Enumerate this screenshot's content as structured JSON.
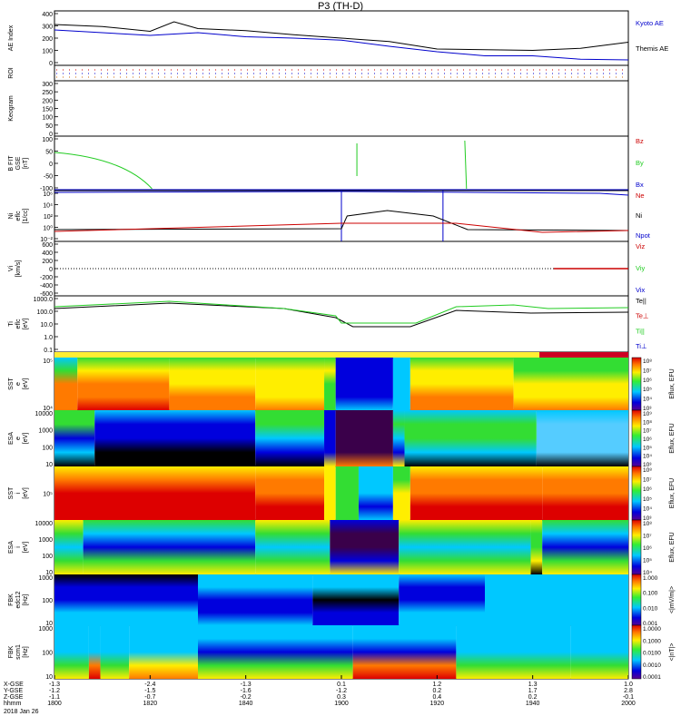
{
  "title": "P3 (TH-D)",
  "time_axis": {
    "start_label": "2018 Jan 26",
    "row_labels": [
      "X-GSE",
      "Y-GSE",
      "Z-GSE",
      "hhmm"
    ],
    "ticks": [
      {
        "x": "-1.3",
        "y": "-1.2",
        "z": "-1.1",
        "t": "1800"
      },
      {
        "x": "-2.4",
        "y": "-1.5",
        "z": "-0.7",
        "t": "1820"
      },
      {
        "x": "-1.3",
        "y": "-1.6",
        "z": "-0.2",
        "t": "1840"
      },
      {
        "x": "0.1",
        "y": "-1.2",
        "z": "0.3",
        "t": "1900"
      },
      {
        "x": "1.2",
        "y": "0.2",
        "z": "0.4",
        "t": "1920"
      },
      {
        "x": "1.3",
        "y": "1.7",
        "z": "0.2",
        "t": "1940"
      },
      {
        "x": "1.0",
        "y": "2.8",
        "z": "-0.1",
        "t": "2000"
      }
    ]
  },
  "panels": [
    {
      "key": "ae",
      "ylabel": [
        "AE Index"
      ],
      "yticks": [
        "400",
        "300",
        "200",
        "100",
        "0"
      ],
      "legend": [
        {
          "text": "Kyoto AE",
          "color": "#0000cc"
        },
        {
          "text": "Themis AE",
          "color": "#000000"
        }
      ]
    },
    {
      "key": "roi",
      "ylabel": [
        "ROI"
      ],
      "yticks": [],
      "legend": []
    },
    {
      "key": "keogram",
      "ylabel": [
        "Keogram"
      ],
      "yticks": [
        "300",
        "250",
        "200",
        "150",
        "100",
        "50",
        "0"
      ],
      "legend": []
    },
    {
      "key": "bfit",
      "ylabel": [
        "B FIT",
        "GSE",
        "[nT]"
      ],
      "yticks": [
        "100",
        "50",
        "0",
        "-50",
        "-100"
      ],
      "legend": [
        {
          "text": "Bz",
          "color": "#cc0000"
        },
        {
          "text": "By",
          "color": "#22cc22"
        },
        {
          "text": "Bx",
          "color": "#0000cc"
        }
      ]
    },
    {
      "key": "ni",
      "ylabel": [
        "Ni",
        "eflc",
        "[1/cc]"
      ],
      "yticks": [
        "10⁶",
        "10⁴",
        "10²",
        "10⁰",
        "10⁻²"
      ],
      "legend": [
        {
          "text": "Ne",
          "color": "#cc0000"
        },
        {
          "text": "Ni",
          "color": "#000000"
        },
        {
          "text": "Npot",
          "color": "#0000cc"
        }
      ]
    },
    {
      "key": "vi",
      "ylabel": [
        "Vi",
        "[km/s]"
      ],
      "yticks": [
        "600",
        "400",
        "200",
        "0",
        "-200",
        "-400",
        "-600"
      ],
      "legend": [
        {
          "text": "Viz",
          "color": "#cc0000"
        },
        {
          "text": "Viy",
          "color": "#22cc22"
        },
        {
          "text": "Vix",
          "color": "#0000cc"
        }
      ]
    },
    {
      "key": "ti",
      "ylabel": [
        "Ti",
        "eflc",
        "[eV]"
      ],
      "yticks": [
        "1000.0",
        "100.0",
        "10.0",
        "1.0",
        "0.1"
      ],
      "legend": [
        {
          "text": "Te||",
          "color": "#000000"
        },
        {
          "text": "Te⊥",
          "color": "#cc0000"
        },
        {
          "text": "Ti||",
          "color": "#22cc22"
        },
        {
          "text": "Ti⊥",
          "color": "#0000cc"
        }
      ]
    },
    {
      "key": "mode",
      "ylabel": [],
      "yticks": [],
      "legend": []
    },
    {
      "key": "sst_e",
      "ylabel": [
        "SST",
        "e",
        "[eV]"
      ],
      "yticks": [
        "10⁵",
        "10⁴"
      ],
      "legend": []
    },
    {
      "key": "esa_e",
      "ylabel": [
        "ESA",
        "e",
        "[eV]"
      ],
      "yticks": [
        "10000",
        "1000",
        "100",
        "10"
      ],
      "legend": []
    },
    {
      "key": "sst_i",
      "ylabel": [
        "SST",
        "i",
        "[eV]"
      ],
      "yticks": [
        "10⁵"
      ],
      "legend": []
    },
    {
      "key": "esa_i",
      "ylabel": [
        "ESA",
        "i",
        "[eV]"
      ],
      "yticks": [
        "10000",
        "1000",
        "100",
        "10"
      ],
      "legend": []
    },
    {
      "key": "fbk_e",
      "ylabel": [
        "FBK",
        "edc12",
        "[Hz]"
      ],
      "yticks": [
        "1000",
        "100",
        "10"
      ],
      "legend": []
    },
    {
      "key": "fbk_b",
      "ylabel": [
        "FBK",
        "scm1",
        "[Hz]"
      ],
      "yticks": [
        "1000",
        "100",
        "10"
      ],
      "legend": []
    }
  ],
  "colorbars": [
    {
      "panel": "sst_e",
      "label": "Eflux, EFU",
      "ticks": [
        "10⁸",
        "10⁷",
        "10⁶",
        "10⁵",
        "10⁴",
        "10³"
      ]
    },
    {
      "panel": "esa_e",
      "label": "Eflux, EFU",
      "ticks": [
        "10⁹",
        "10⁸",
        "10⁷",
        "10⁶",
        "10⁵",
        "10⁴",
        "10³"
      ]
    },
    {
      "panel": "sst_i",
      "label": "Eflux, EFU",
      "ticks": [
        "10⁸",
        "10⁷",
        "10⁶",
        "10⁵",
        "10⁴",
        "10³"
      ]
    },
    {
      "panel": "esa_i",
      "label": "Eflux, EFU",
      "ticks": [
        "10⁸",
        "10⁷",
        "10⁶",
        "10⁵",
        "10⁴"
      ]
    },
    {
      "panel": "fbk_e",
      "label": "<|mV/m|>",
      "ticks": [
        "1.000",
        "0.100",
        "0.010",
        "0.001"
      ]
    },
    {
      "panel": "fbk_b",
      "label": "<|nT|>",
      "ticks": [
        "1.0000",
        "0.1000",
        "0.0100",
        "0.0010",
        "0.0001"
      ]
    }
  ],
  "chart_data": {
    "type": "line",
    "title": "P3 (TH-D)",
    "x_ticks": [
      "1800",
      "1820",
      "1840",
      "1900",
      "1920",
      "1940",
      "2000"
    ],
    "x_range": [
      "1800",
      "2000"
    ],
    "series": [
      {
        "name": "Themis AE",
        "color": "#000000",
        "x": [
          "1800",
          "1810",
          "1820",
          "1825",
          "1830",
          "1840",
          "1850",
          "1900",
          "1910",
          "1920",
          "1930",
          "1940",
          "1950",
          "2000"
        ],
        "values": [
          300,
          285,
          250,
          320,
          270,
          255,
          225,
          200,
          175,
          120,
          115,
          110,
          125,
          170
        ]
      },
      {
        "name": "Kyoto AE",
        "color": "#0000cc",
        "x": [
          "1800",
          "1810",
          "1820",
          "1830",
          "1840",
          "1850",
          "1900",
          "1910",
          "1920",
          "1930",
          "1940",
          "1950",
          "2000"
        ],
        "values": [
          260,
          240,
          220,
          240,
          210,
          200,
          185,
          140,
          100,
          70,
          70,
          45,
          40
        ]
      }
    ],
    "ylabel": "AE Index",
    "ylim": [
      0,
      400
    ]
  }
}
